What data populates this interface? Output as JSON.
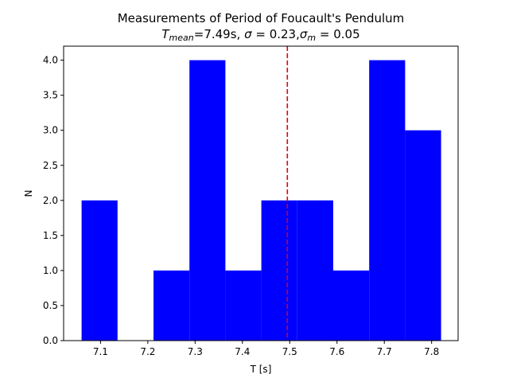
{
  "chart_data": {
    "type": "bar",
    "title_line1": "Measurements of Period of Foucault's Pendulum",
    "title_line2": {
      "part_T": "T",
      "part_mean": "mean",
      "part_value": "=7.49s, ",
      "part_sigma": "σ",
      "part_sigma_value": " = 0.23,",
      "part_sigma_m": "σ",
      "part_m": "m",
      "part_sigma_m_value": " = 0.05"
    },
    "xlabel": "T [s]",
    "ylabel": "N",
    "xlim": [
      7.022,
      7.856
    ],
    "ylim": [
      0,
      4.2
    ],
    "bin_edges": [
      7.06,
      7.136,
      7.212,
      7.288,
      7.364,
      7.44,
      7.516,
      7.592,
      7.668,
      7.744,
      7.82
    ],
    "values": [
      2,
      0,
      1,
      4,
      1,
      2,
      2,
      1,
      4,
      3
    ],
    "bar_color": "#0000ff",
    "mean_line": {
      "value": 7.495,
      "color": "#dd0000",
      "style": "dashed"
    },
    "x_ticks": [
      7.1,
      7.2,
      7.3,
      7.4,
      7.5,
      7.6,
      7.7,
      7.8
    ],
    "x_tick_labels": [
      "7.1",
      "7.2",
      "7.3",
      "7.4",
      "7.5",
      "7.6",
      "7.7",
      "7.8"
    ],
    "y_ticks": [
      0,
      0.5,
      1,
      1.5,
      2,
      2.5,
      3,
      3.5,
      4
    ],
    "y_tick_labels": [
      "0.0",
      "0.5",
      "1.0",
      "1.5",
      "2.0",
      "2.5",
      "3.0",
      "3.5",
      "4.0"
    ],
    "grid": false,
    "legend": "none"
  }
}
